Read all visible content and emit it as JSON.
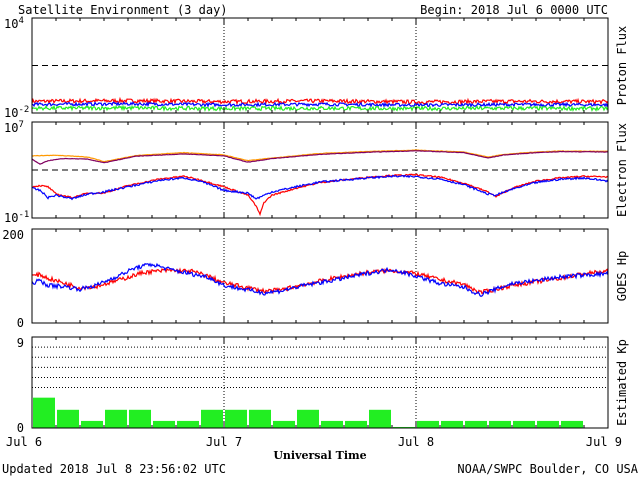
{
  "header": {
    "title": "Satellite Environment (3 day)",
    "begin": "Begin:  2018 Jul 6 0000 UTC"
  },
  "footer": {
    "updated": "Updated 2018 Jul  8 23:56:02 UTC",
    "credit": "NOAA/SWPC Boulder, CO USA"
  },
  "colors": {
    "red": "#ff0000",
    "blue": "#0000ff",
    "green": "#22ee22",
    "orange": "#ff9900",
    "purple": "#800060",
    "black": "#000000"
  },
  "chart_data": [
    {
      "type": "line",
      "panel": "proton",
      "ylabel": "Proton Flux",
      "yscale": "log",
      "ylim": [
        0.01,
        10000
      ],
      "ticks": [
        {
          "base": "10",
          "exp": "4"
        },
        {
          "base": "10",
          "exp": "-2"
        }
      ],
      "threshold": 10,
      "xlim": [
        0,
        72
      ],
      "series": [
        {
          "color": "red",
          "x": [
            0,
            12,
            24,
            36,
            48,
            60,
            72
          ],
          "y": [
            0.055,
            0.06,
            0.052,
            0.058,
            0.05,
            0.055,
            0.052
          ],
          "noise": 0.12
        },
        {
          "color": "blue",
          "x": [
            0,
            12,
            24,
            36,
            48,
            60,
            72
          ],
          "y": [
            0.035,
            0.038,
            0.033,
            0.036,
            0.032,
            0.034,
            0.033
          ],
          "noise": 0.1
        },
        {
          "color": "green",
          "x": [
            0,
            12,
            24,
            36,
            48,
            60,
            72
          ],
          "y": [
            0.02,
            0.021,
            0.019,
            0.02,
            0.019,
            0.02,
            0.019
          ],
          "noise": 0.12
        }
      ]
    },
    {
      "type": "line",
      "panel": "electron",
      "ylabel": "Electron Flux",
      "yscale": "log",
      "ylim": [
        0.1,
        10000000
      ],
      "ticks": [
        {
          "base": "10",
          "exp": "7"
        },
        {
          "base": "10",
          "exp": "-1"
        }
      ],
      "threshold": 1000,
      "xlim": [
        0,
        72
      ],
      "series": [
        {
          "color": "orange",
          "x": [
            0,
            3,
            7,
            9,
            13,
            19,
            24,
            27,
            30,
            36,
            42,
            48,
            54,
            57,
            59,
            63,
            66,
            72
          ],
          "y": [
            15000,
            17000,
            12000,
            5000,
            16000,
            28000,
            18000,
            6000,
            10000,
            24000,
            35000,
            45000,
            32000,
            12000,
            20000,
            32000,
            38000,
            36000
          ],
          "noise": 0.02
        },
        {
          "color": "purple",
          "x": [
            0,
            1,
            2,
            4,
            7,
            9,
            13,
            19,
            24,
            27,
            30,
            36,
            42,
            48,
            54,
            57,
            59,
            63,
            66,
            72
          ],
          "y": [
            8000,
            3000,
            6000,
            9000,
            8000,
            4000,
            14000,
            22000,
            15000,
            4500,
            9000,
            20000,
            30000,
            40000,
            28000,
            10000,
            18000,
            28000,
            34000,
            32000
          ],
          "noise": 0.02
        },
        {
          "color": "red",
          "x": [
            0,
            1,
            2,
            3,
            5,
            7,
            9,
            12,
            16,
            19,
            21,
            24,
            27,
            28,
            28.5,
            29,
            30,
            33,
            36,
            42,
            45,
            48,
            51,
            54,
            57,
            58,
            60,
            63,
            66,
            69,
            72
          ],
          "y": [
            40,
            50,
            40,
            10,
            5,
            12,
            12,
            50,
            180,
            300,
            150,
            40,
            8,
            1,
            0.2,
            2,
            8,
            30,
            90,
            250,
            350,
            400,
            250,
            80,
            15,
            6,
            30,
            120,
            220,
            300,
            270
          ],
          "noise": 0.06
        },
        {
          "color": "blue",
          "x": [
            0,
            1,
            2,
            3,
            5,
            7,
            9,
            12,
            16,
            19,
            21,
            24,
            27,
            28,
            30,
            33,
            36,
            42,
            45,
            48,
            51,
            54,
            57,
            58,
            60,
            63,
            66,
            69,
            72
          ],
          "y": [
            30,
            20,
            5,
            8,
            4,
            10,
            15,
            40,
            140,
            220,
            120,
            20,
            12,
            4,
            15,
            40,
            100,
            220,
            300,
            280,
            180,
            60,
            10,
            8,
            25,
            90,
            170,
            220,
            120
          ],
          "noise": 0.08
        }
      ]
    },
    {
      "type": "line",
      "panel": "goes-hp",
      "ylabel": "GOES Hp",
      "yscale": "linear",
      "ylim": [
        0,
        200
      ],
      "ticks": [
        {
          "value": "200"
        },
        {
          "value": "0"
        }
      ],
      "xlim": [
        0,
        72
      ],
      "series": [
        {
          "color": "red",
          "x": [
            0,
            1,
            2,
            4,
            6,
            8,
            11,
            14,
            17,
            20,
            22,
            24,
            27,
            29,
            31,
            34,
            38,
            42,
            45,
            48,
            51,
            54,
            56,
            57,
            58,
            60,
            63,
            66,
            69,
            72
          ],
          "y": [
            100,
            103,
            95,
            85,
            75,
            78,
            92,
            108,
            112,
            110,
            100,
            85,
            75,
            68,
            70,
            82,
            96,
            108,
            112,
            105,
            92,
            82,
            65,
            68,
            72,
            80,
            88,
            95,
            105,
            110
          ],
          "noise": 1.5
        },
        {
          "color": "blue",
          "x": [
            0,
            1,
            2,
            4,
            6,
            8,
            11,
            13,
            15,
            17,
            20,
            22,
            24,
            27,
            29,
            31,
            34,
            38,
            42,
            45,
            48,
            51,
            54,
            56,
            57,
            58,
            60,
            63,
            66,
            69,
            72
          ],
          "y": [
            85,
            90,
            80,
            78,
            72,
            80,
            102,
            118,
            125,
            115,
            104,
            98,
            80,
            70,
            64,
            68,
            80,
            92,
            106,
            114,
            100,
            84,
            76,
            60,
            66,
            72,
            84,
            90,
            98,
            102,
            105
          ],
          "noise": 1.5
        }
      ]
    },
    {
      "type": "bar",
      "panel": "kp",
      "ylabel": "Estimated Kp",
      "ylim": [
        0,
        9
      ],
      "ticks": [
        {
          "value": "9"
        },
        {
          "value": "0"
        }
      ],
      "gridlines": [
        4,
        5,
        6,
        7,
        8,
        9
      ],
      "bar_color": "#22ee22",
      "values": [
        3,
        1.8,
        0.7,
        1.8,
        1.8,
        0.7,
        0.7,
        1.8,
        1.8,
        1.8,
        0.7,
        1.8,
        0.7,
        0.7,
        1.8,
        0.1,
        0.7,
        0.7,
        0.7,
        0.7,
        0.7,
        0.7,
        0.7
      ]
    }
  ],
  "xaxis": {
    "label": "Universal Time",
    "ticks": [
      "Jul 6",
      "Jul 7",
      "Jul 8",
      "Jul 9"
    ]
  }
}
